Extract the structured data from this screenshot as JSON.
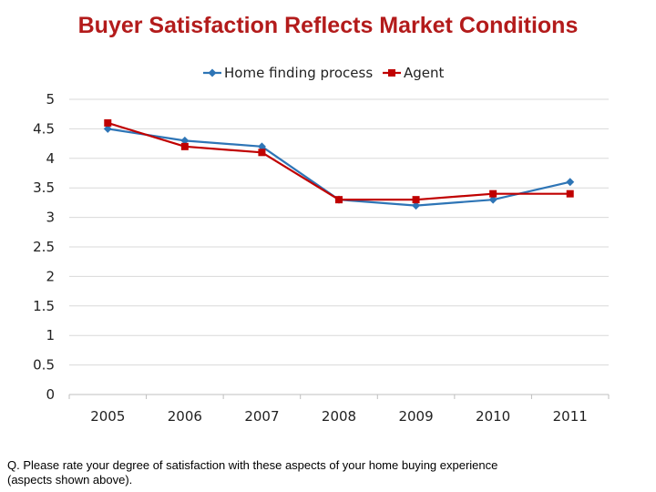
{
  "title": "Buyer Satisfaction Reflects Market Conditions",
  "note": "Q. Please rate your degree of satisfaction with these aspects of your home buying experience (aspects shown above).",
  "colors": {
    "title": "#b31b1b",
    "series_home": "#2e75b6",
    "series_agent": "#c00000",
    "grid": "#d9d9d9",
    "axis": "#bfbfbf"
  },
  "chart_data": {
    "type": "line",
    "x": [
      "2005",
      "2006",
      "2007",
      "2008",
      "2009",
      "2010",
      "2011"
    ],
    "series": [
      {
        "name": "Home finding process",
        "marker": "diamond",
        "values": [
          4.5,
          4.3,
          4.2,
          3.3,
          3.2,
          3.3,
          3.6
        ]
      },
      {
        "name": "Agent",
        "marker": "square",
        "values": [
          4.6,
          4.2,
          4.1,
          3.3,
          3.3,
          3.4,
          3.4
        ]
      }
    ],
    "ylim": [
      0,
      5
    ],
    "yticks": [
      "0",
      "0.5",
      "1",
      "1.5",
      "2",
      "2.5",
      "3",
      "3.5",
      "4",
      "4.5",
      "5"
    ],
    "grid": true,
    "legend": "top-center",
    "xlabel": "",
    "ylabel": ""
  }
}
